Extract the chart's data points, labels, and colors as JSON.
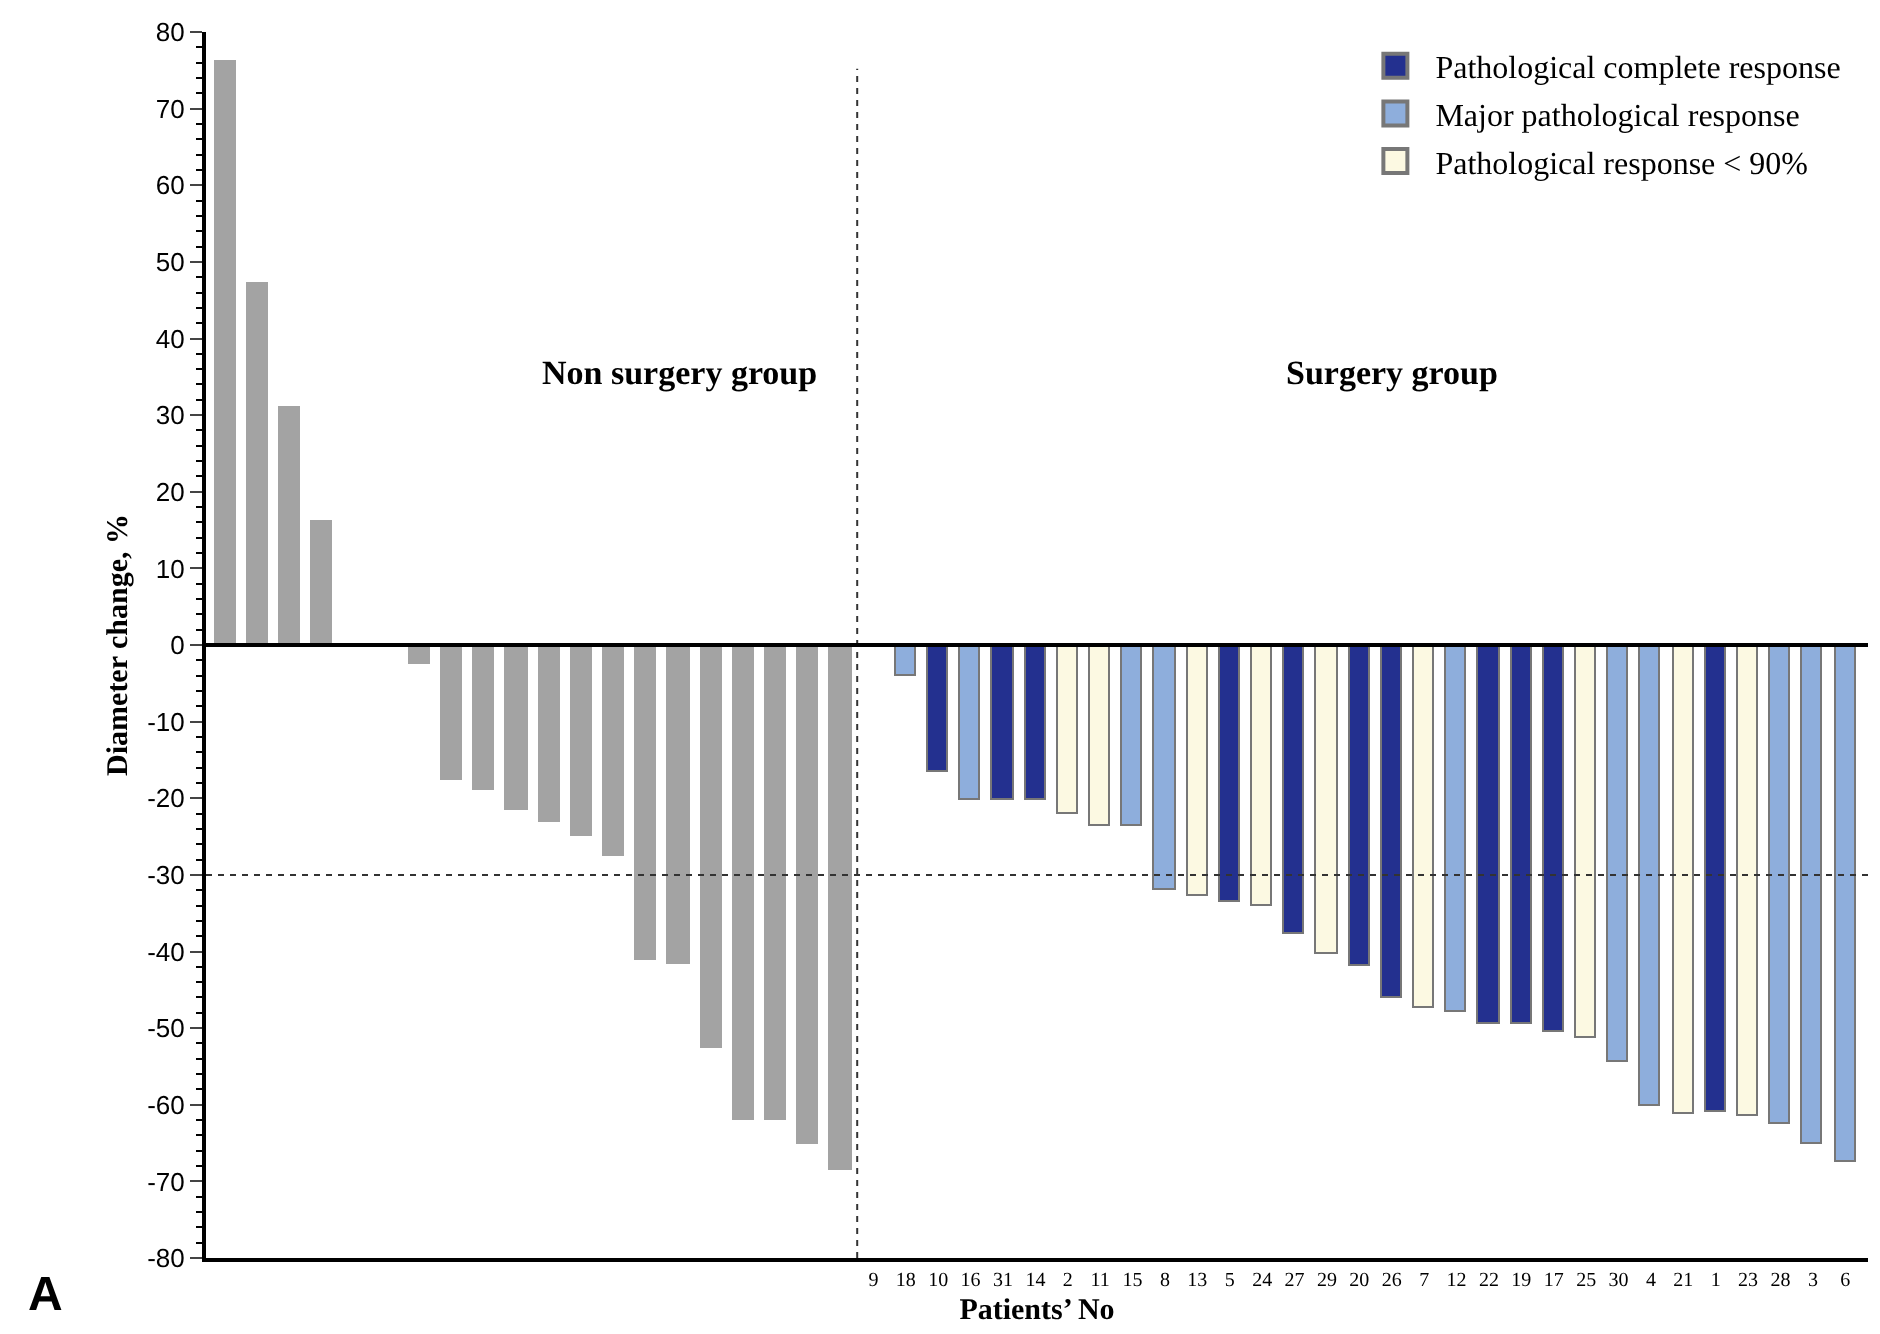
{
  "chart_data": {
    "type": "bar",
    "xlabel": "Patients’ No",
    "ylabel": "Diameter change, %",
    "categories": [
      null,
      null,
      null,
      null,
      null,
      null,
      null,
      null,
      null,
      null,
      null,
      null,
      null,
      null,
      null,
      null,
      null,
      null,
      null,
      null,
      "9",
      "18",
      "10",
      "16",
      "31",
      "14",
      "2",
      "11",
      "15",
      "8",
      "13",
      "5",
      "24",
      "27",
      "29",
      "20",
      "26",
      "7",
      "12",
      "22",
      "19",
      "17",
      "25",
      "30",
      "4",
      "21",
      "1",
      "23",
      "28",
      "3",
      "6"
    ],
    "series": [
      {
        "color": "#a3a3a3",
        "values": [
          76,
          47,
          31,
          16,
          null,
          null,
          -2.5,
          -17.5,
          -19,
          -21.5,
          -23,
          -25,
          -27.5,
          -41,
          -41.5,
          -52.5,
          -62,
          -62,
          -65,
          -68.5,
          null,
          null,
          null,
          null,
          null,
          null,
          null,
          null,
          null,
          null,
          null,
          null,
          null,
          null,
          null,
          null,
          null,
          null,
          null,
          null,
          null,
          null,
          null,
          null,
          null,
          null,
          null,
          null,
          null,
          null,
          null
        ]
      },
      {
        "name": "Pathological complete response",
        "color": "#23308f",
        "values": [
          null,
          null,
          null,
          null,
          null,
          null,
          null,
          null,
          null,
          null,
          null,
          null,
          null,
          null,
          null,
          null,
          null,
          null,
          null,
          null,
          null,
          null,
          -16.6,
          null,
          -20.1,
          -20.3,
          null,
          null,
          null,
          null,
          null,
          -33.6,
          null,
          -37.8,
          null,
          -41.8,
          -46,
          null,
          null,
          -49.4,
          -49.5,
          -50.4,
          null,
          null,
          null,
          null,
          -61,
          null,
          null,
          null,
          null
        ]
      },
      {
        "name": "Major pathological response",
        "color": "#8eaedc",
        "values": [
          null,
          null,
          null,
          null,
          null,
          null,
          null,
          null,
          null,
          null,
          null,
          null,
          null,
          null,
          null,
          null,
          null,
          null,
          null,
          null,
          null,
          -4.1,
          null,
          -20.1,
          null,
          null,
          null,
          null,
          -23.6,
          -32,
          null,
          null,
          null,
          null,
          null,
          null,
          null,
          null,
          -47.9,
          null,
          null,
          null,
          null,
          -54.4,
          -60.2,
          null,
          null,
          null,
          -62.4,
          -65,
          -67.6
        ]
      },
      {
        "name": "Pathological response < 90%",
        "color": "#fcf9e2",
        "values": [
          null,
          null,
          null,
          null,
          null,
          null,
          null,
          null,
          null,
          null,
          null,
          null,
          null,
          null,
          null,
          null,
          null,
          null,
          null,
          null,
          null,
          null,
          null,
          null,
          null,
          null,
          -22.1,
          -23.6,
          null,
          null,
          -32.7,
          null,
          -34,
          null,
          -40.3,
          null,
          null,
          -47.3,
          null,
          null,
          null,
          null,
          -51.3,
          null,
          null,
          -61.2,
          null,
          -61.5,
          null,
          null,
          null
        ]
      }
    ],
    "ylim": [
      -80,
      80
    ],
    "yticks": [
      -80,
      -70,
      -60,
      -50,
      -40,
      -30,
      -20,
      -10,
      0,
      10,
      20,
      30,
      40,
      50,
      60,
      70,
      80
    ],
    "ref_lines": [
      {
        "axis": "y",
        "value": -30,
        "line_style": "dotted"
      }
    ],
    "annotations": [
      "Non surgery group",
      "Surgery group",
      "A"
    ],
    "legend": "top right"
  }
}
